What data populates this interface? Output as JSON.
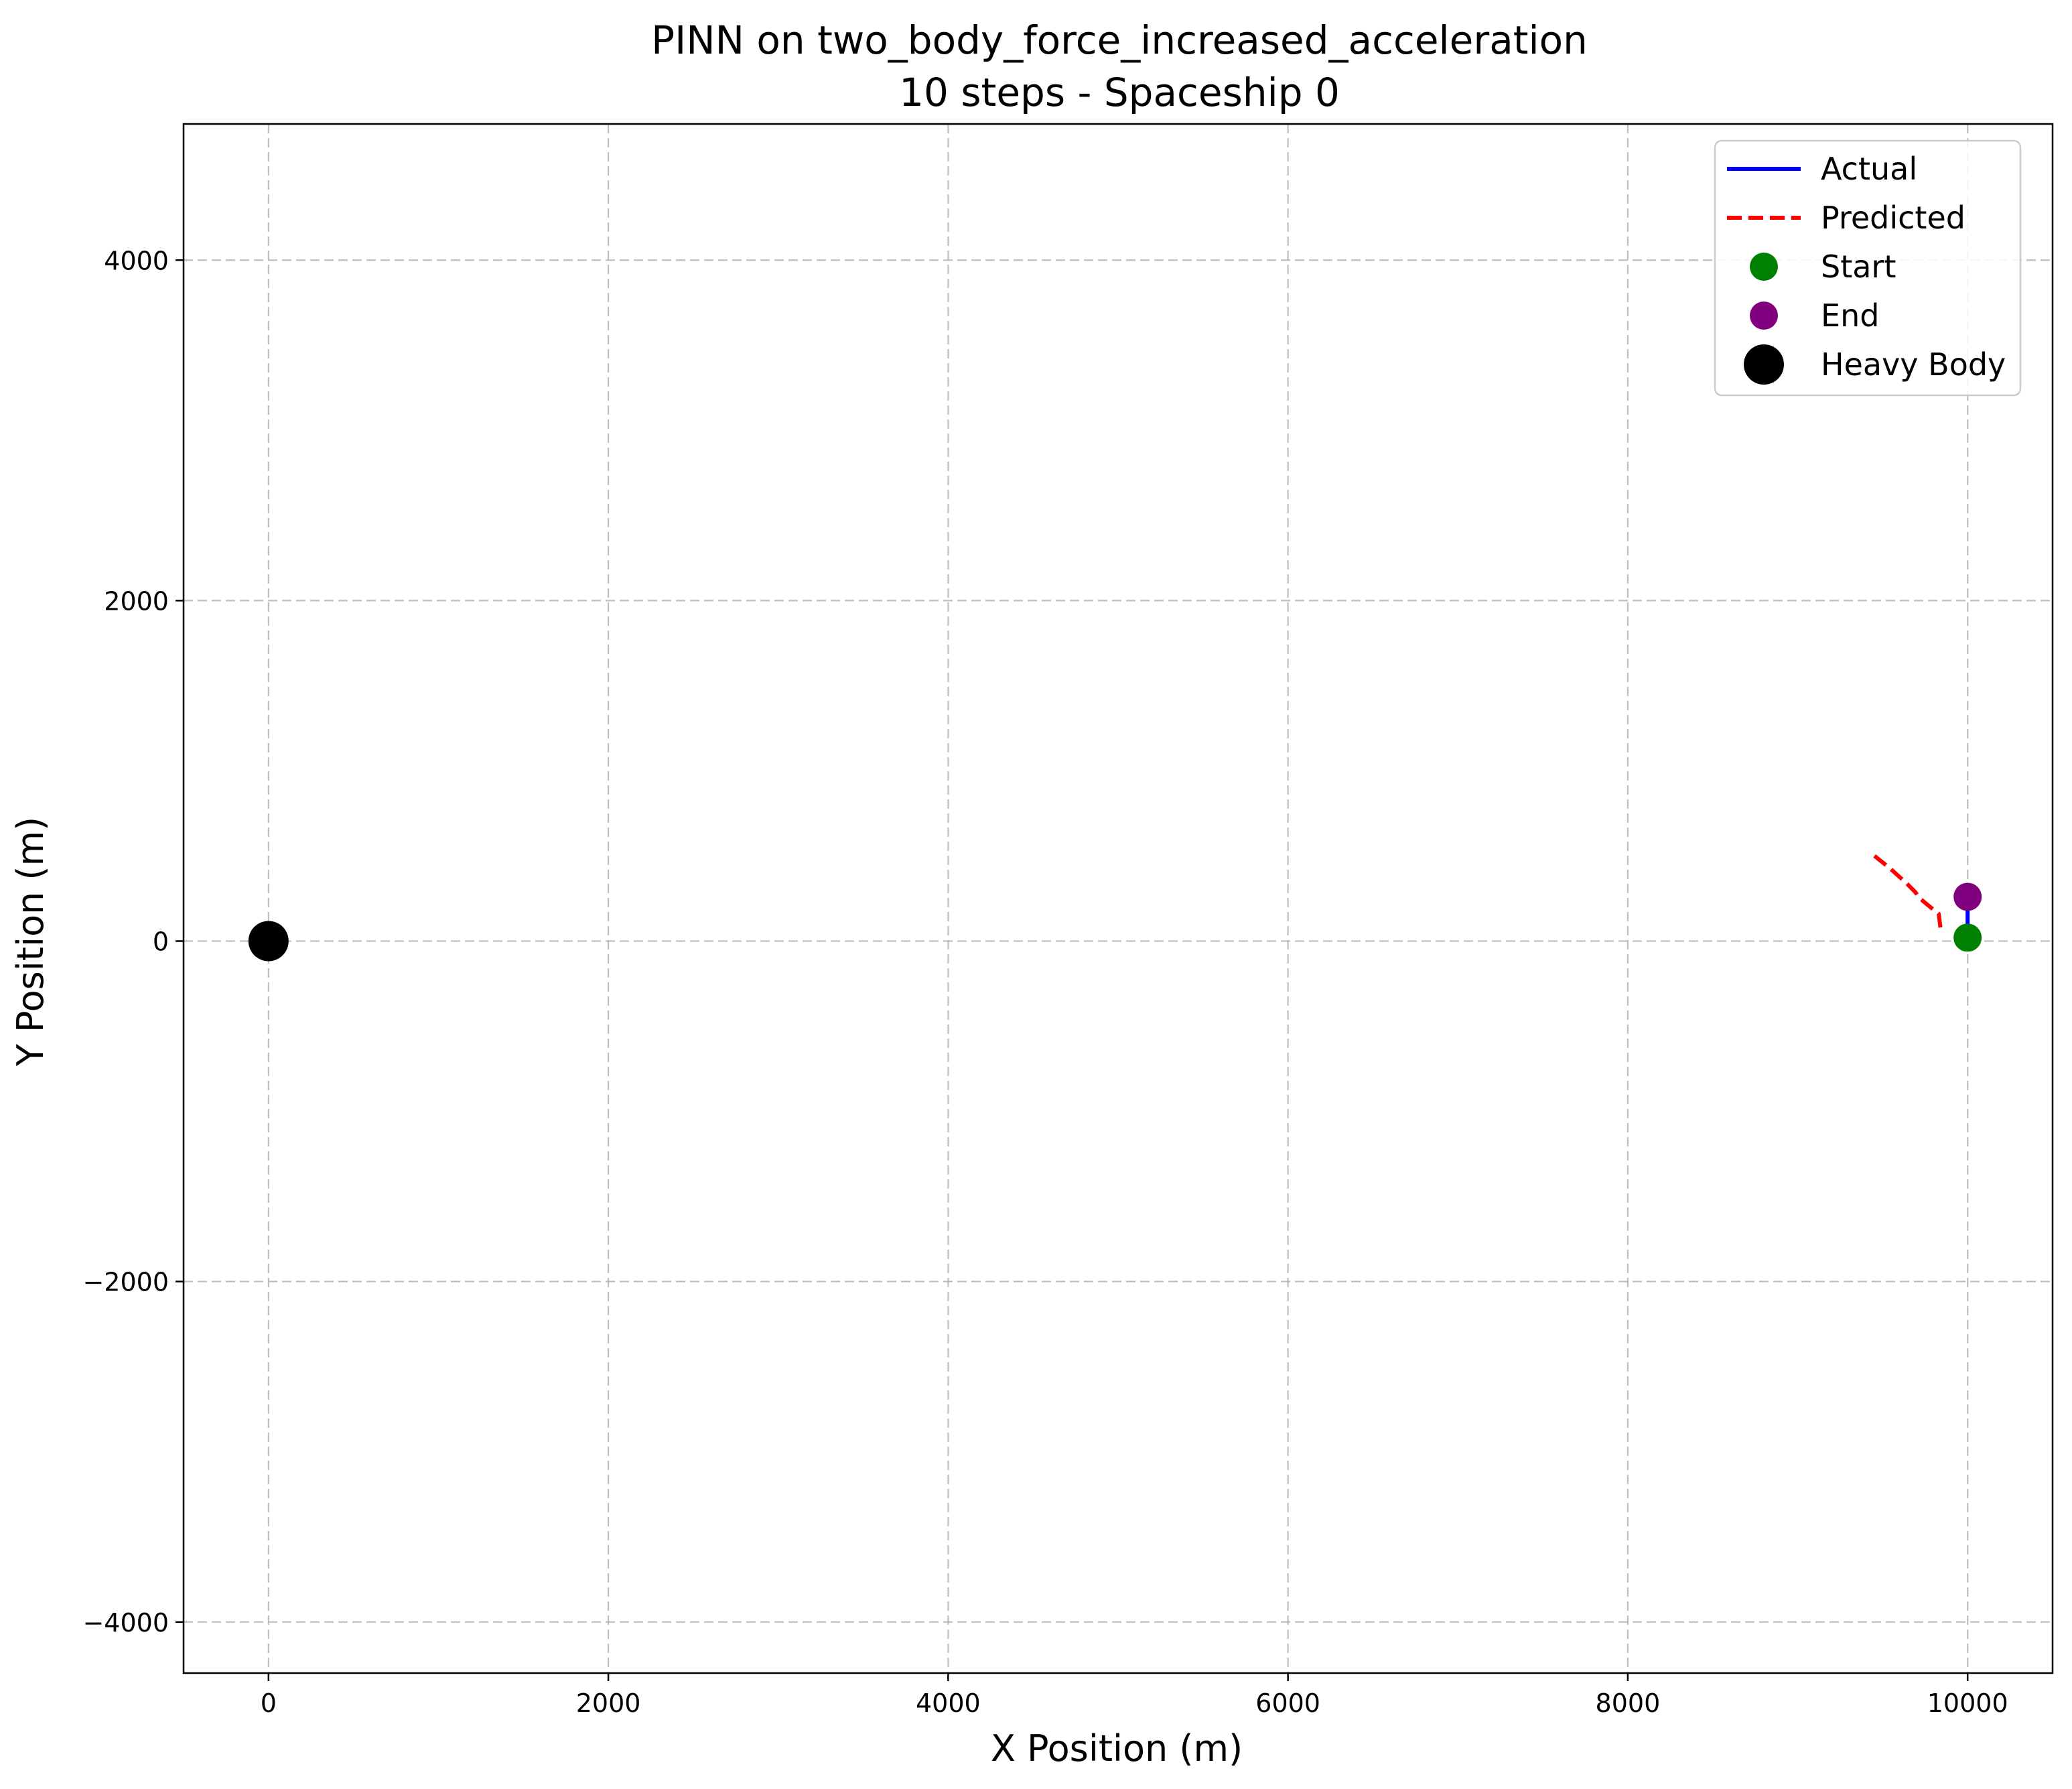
{
  "chart_data": {
    "type": "line",
    "title": "PINN on two_body_force_increased_acceleration",
    "subtitle": "10 steps - Spaceship 0",
    "xlabel": "X Position (m)",
    "ylabel": "Y Position (m)",
    "xlim": [
      -500,
      10500
    ],
    "ylim": [
      -4300,
      4800
    ],
    "xticks": [
      0,
      2000,
      4000,
      6000,
      8000,
      10000
    ],
    "xtick_labels": [
      "0",
      "2000",
      "4000",
      "6000",
      "8000",
      "10000"
    ],
    "yticks": [
      -4000,
      -2000,
      0,
      2000,
      4000
    ],
    "ytick_labels": [
      "−4000",
      "−2000",
      "0",
      "2000",
      "4000"
    ],
    "grid": true,
    "legend_position": "top-right",
    "series": [
      {
        "name": "Actual",
        "kind": "line",
        "style": "solid",
        "color": "#0000ff",
        "x": [
          10000,
          10000,
          10000,
          10000,
          10000,
          10000,
          10000,
          10000,
          10000,
          10000,
          10000
        ],
        "y": [
          20,
          45,
          70,
          95,
          120,
          145,
          170,
          195,
          220,
          240,
          260
        ]
      },
      {
        "name": "Predicted",
        "kind": "line",
        "style": "dashed",
        "color": "#ff0000",
        "x": [
          9840,
          9830,
          9780,
          9720,
          9690,
          9640,
          9590,
          9540,
          9490,
          9440
        ],
        "y": [
          80,
          160,
          200,
          250,
          290,
          340,
          385,
          430,
          470,
          510
        ]
      },
      {
        "name": "Start",
        "kind": "point",
        "color": "#008000",
        "x": [
          10000
        ],
        "y": [
          20
        ]
      },
      {
        "name": "End",
        "kind": "point",
        "color": "#800080",
        "x": [
          10000
        ],
        "y": [
          260
        ]
      },
      {
        "name": "Heavy Body",
        "kind": "point",
        "color": "#000000",
        "x": [
          0
        ],
        "y": [
          0
        ]
      }
    ]
  }
}
